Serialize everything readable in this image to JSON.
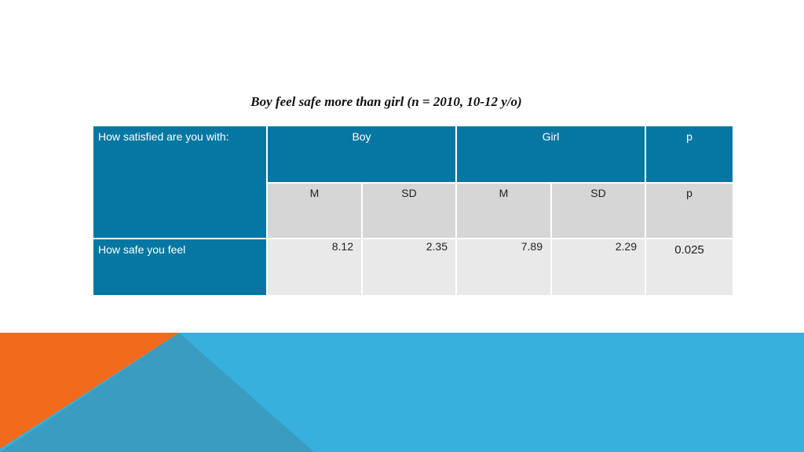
{
  "title": "Boy feel safe more than girl (n = 2010, 10-12 y/o)",
  "table": {
    "header": [
      "How satisfied are you with:",
      "Boy",
      "Girl",
      "p"
    ],
    "subheader": [
      "M",
      "SD",
      "M",
      "SD",
      "p"
    ],
    "rows": [
      [
        "How safe you feel",
        "8.12",
        "2.35",
        "7.89",
        "2.29",
        "0.025"
      ]
    ]
  }
}
